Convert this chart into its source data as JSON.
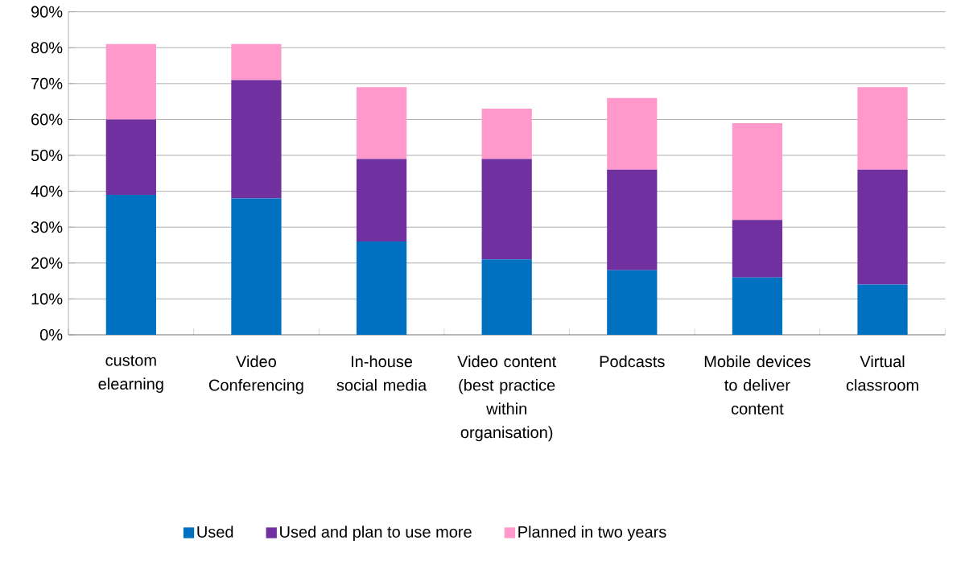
{
  "chart_data": {
    "type": "bar",
    "stacked": true,
    "categories": [
      "custom elearning",
      "Video Conferencing",
      "In-house social media",
      "Video content (best practice within organisation)",
      "Podcasts",
      "Mobile devices to deliver content",
      "Virtual classroom"
    ],
    "series": [
      {
        "name": "Used",
        "color": "#0070c0",
        "values": [
          39,
          38,
          26,
          21,
          18,
          16,
          14
        ]
      },
      {
        "name": "Used and plan to use more",
        "color": "#7030a0",
        "values": [
          21,
          33,
          23,
          28,
          28,
          16,
          32
        ]
      },
      {
        "name": "Planned in two years",
        "color": "#ff99cc",
        "values": [
          21,
          10,
          20,
          14,
          20,
          27,
          23
        ]
      }
    ],
    "ylim": [
      0,
      90
    ],
    "yticks": [
      {
        "value": 0,
        "label": "0%"
      },
      {
        "value": 10,
        "label": "10%"
      },
      {
        "value": 20,
        "label": "20%"
      },
      {
        "value": 30,
        "label": "30%"
      },
      {
        "value": 40,
        "label": "40%"
      },
      {
        "value": 50,
        "label": "50%"
      },
      {
        "value": 60,
        "label": "60%"
      },
      {
        "value": 70,
        "label": "70%"
      },
      {
        "value": 80,
        "label": "80%"
      },
      {
        "value": 90,
        "label": "90%"
      }
    ],
    "grid": "y",
    "legend": "bottom"
  }
}
